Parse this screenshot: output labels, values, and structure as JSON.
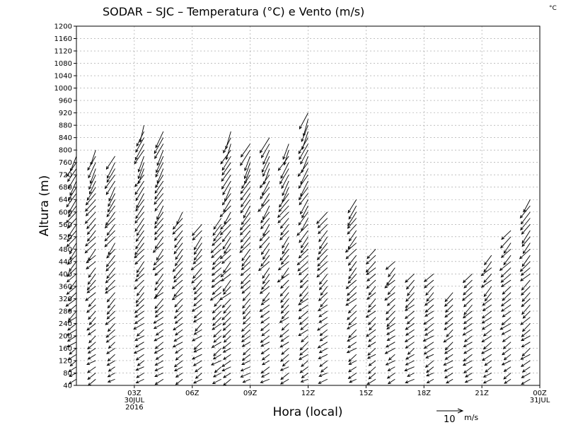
{
  "chart_data": {
    "type": "wind-barb-profile",
    "title": "SODAR – SJC – Temperatura (°C) e Vento (m/s)",
    "corner_unit": "°C",
    "xlabel": "Hora (local)",
    "ylabel": "Altura (m)",
    "xlim": [
      0,
      24
    ],
    "ylim": [
      40,
      1200
    ],
    "y_ticks": [
      40,
      80,
      120,
      160,
      200,
      240,
      280,
      320,
      360,
      400,
      440,
      480,
      520,
      560,
      600,
      640,
      680,
      720,
      760,
      800,
      840,
      880,
      920,
      960,
      1000,
      1040,
      1080,
      1120,
      1160,
      1200
    ],
    "y_tick_labels": [
      "40",
      "80",
      "120",
      "160",
      "200",
      "240",
      "280",
      "320",
      "360",
      "400",
      "440",
      "480",
      "520",
      "560",
      "600",
      "640",
      "680",
      "720",
      "760",
      "800",
      "840",
      "880",
      "920",
      "960",
      "1000",
      "1040",
      "1080",
      "1120",
      "1160",
      "1200"
    ],
    "x_ticks": [
      {
        "hour": 3,
        "label": "03Z",
        "sub1": "30JUL",
        "sub2": "2016"
      },
      {
        "hour": 6,
        "label": "06Z",
        "sub1": "",
        "sub2": ""
      },
      {
        "hour": 9,
        "label": "09Z",
        "sub1": "",
        "sub2": ""
      },
      {
        "hour": 12,
        "label": "12Z",
        "sub1": "",
        "sub2": ""
      },
      {
        "hour": 15,
        "label": "15Z",
        "sub1": "",
        "sub2": ""
      },
      {
        "hour": 18,
        "label": "18Z",
        "sub1": "",
        "sub2": ""
      },
      {
        "hour": 21,
        "label": "21Z",
        "sub1": "",
        "sub2": ""
      },
      {
        "hour": 24,
        "label": "00Z",
        "sub1": "31JUL",
        "sub2": ""
      }
    ],
    "grid": true,
    "reference_vector": {
      "speed_ms": 10,
      "label": "10",
      "unit": "m/s"
    },
    "wind_profiles": [
      {
        "hour": 0.0,
        "top_m": 780
      },
      {
        "hour": 1.0,
        "top_m": 800
      },
      {
        "hour": 2.0,
        "top_m": 790
      },
      {
        "hour": 3.5,
        "top_m": 890
      },
      {
        "hour": 4.5,
        "top_m": 870
      },
      {
        "hour": 5.5,
        "top_m": 600
      },
      {
        "hour": 6.5,
        "top_m": 560
      },
      {
        "hour": 7.5,
        "top_m": 580
      },
      {
        "hour": 8.0,
        "top_m": 860
      },
      {
        "hour": 9.0,
        "top_m": 820
      },
      {
        "hour": 10.0,
        "top_m": 840
      },
      {
        "hour": 11.0,
        "top_m": 830
      },
      {
        "hour": 12.0,
        "top_m": 930
      },
      {
        "hour": 13.0,
        "top_m": 600
      },
      {
        "hour": 14.5,
        "top_m": 640
      },
      {
        "hour": 15.5,
        "top_m": 480
      },
      {
        "hour": 16.5,
        "top_m": 440
      },
      {
        "hour": 17.5,
        "top_m": 400
      },
      {
        "hour": 18.5,
        "top_m": 400
      },
      {
        "hour": 19.5,
        "top_m": 340
      },
      {
        "hour": 20.5,
        "top_m": 410
      },
      {
        "hour": 21.5,
        "top_m": 470
      },
      {
        "hour": 22.5,
        "top_m": 540
      },
      {
        "hour": 23.5,
        "top_m": 640
      }
    ]
  }
}
